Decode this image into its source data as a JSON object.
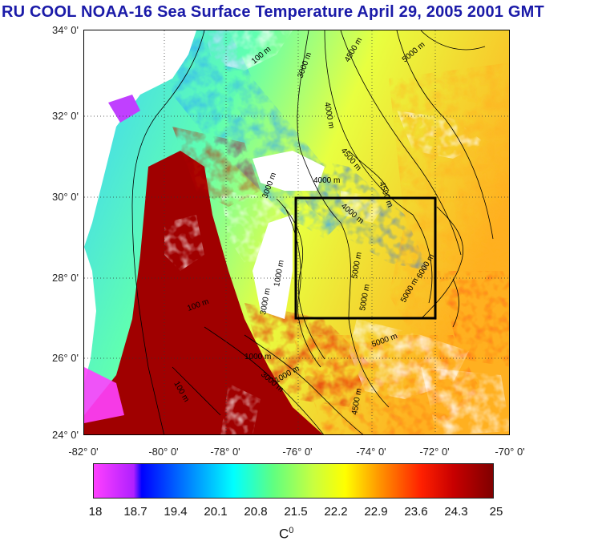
{
  "title": "RU COOL  NOAA-16 Sea Surface Temperature April 29, 2005 2001 GMT",
  "y_axis_labels": [
    "34° 0'",
    "32° 0'",
    "30° 0'",
    "28° 0'",
    "26° 0'",
    "24° 0'"
  ],
  "x_axis_labels": [
    "-82° 0'",
    "-80° 0'",
    "-78° 0'",
    "-76° 0'",
    "-74° 0'",
    "-72° 0'",
    "-70° 0'"
  ],
  "colorbar": {
    "labels": [
      "18",
      "18.7",
      "19.4",
      "20.1",
      "20.8",
      "21.5",
      "22.2",
      "22.9",
      "23.6",
      "24.3",
      "25"
    ],
    "unit": "C",
    "unit_sup": "0",
    "colors": [
      "#ff40ff",
      "#c020ff",
      "#0000ff",
      "#0080ff",
      "#00ffff",
      "#60ff80",
      "#c0ff40",
      "#ffff00",
      "#ff9000",
      "#ff2000",
      "#c00000",
      "#800000"
    ]
  },
  "contour_labels": [
    "100 m",
    "3000 m",
    "4000 m",
    "4500 m",
    "5000 m",
    "3000 m",
    "4000 m",
    "4500 m",
    "4000 m",
    "4500 m",
    "5000 m",
    "6000 m",
    "5000 m",
    "5000 m",
    "3000 m",
    "1000 m",
    "100 m",
    "1000 m",
    "3000 m",
    "5000 m",
    "4500 m",
    "1000 m",
    "100 m"
  ],
  "box_region": "-76° to -72°, 27° to 30°"
}
